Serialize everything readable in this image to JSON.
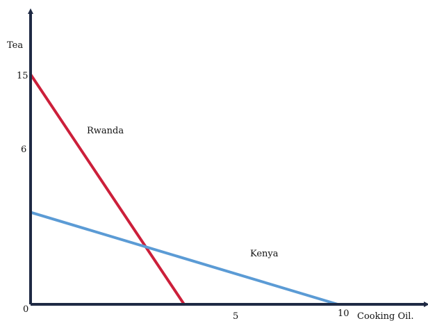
{
  "chart_data": {
    "type": "line",
    "title": "",
    "xlabel": "Cooking Oil.",
    "ylabel": "Tea",
    "xlim": [
      0,
      10
    ],
    "ylim": [
      0,
      15
    ],
    "x_ticks": [
      "5",
      "10"
    ],
    "y_ticks": [
      "6",
      "15"
    ],
    "origin_label": "0",
    "grid": false,
    "legend": "none",
    "series": [
      {
        "name": "Rwanda",
        "color": "#cc1f3a",
        "x": [
          0,
          5
        ],
        "y": [
          15,
          0
        ]
      },
      {
        "name": "Kenya",
        "color": "#5b9bd5",
        "x": [
          0,
          10
        ],
        "y": [
          6,
          0
        ]
      }
    ],
    "axis_color": "#1f2a44"
  }
}
